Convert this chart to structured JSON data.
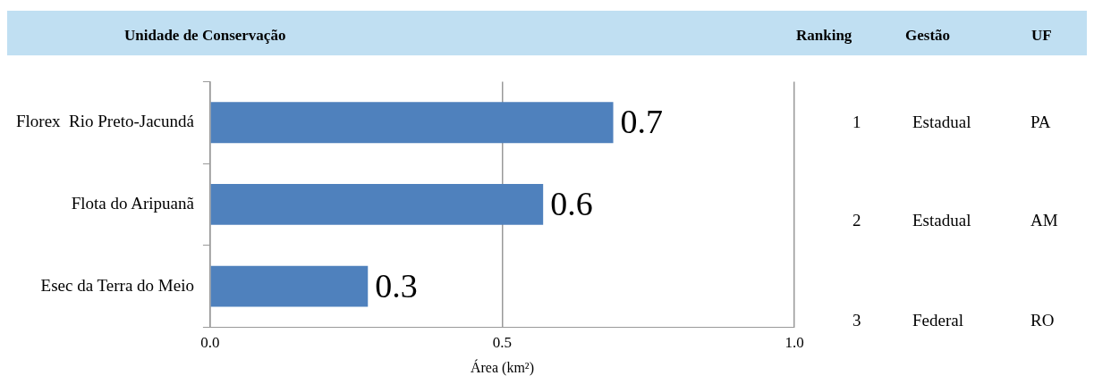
{
  "chart_data": {
    "type": "bar",
    "orientation": "horizontal",
    "ylabel": "Unidade de Conservação",
    "xlabel": "Área (km²)",
    "categories": [
      "Florex  Rio Preto-Jacundá",
      "Flota do Aripuanã",
      "Esec da Terra do Meio"
    ],
    "values": [
      0.69,
      0.57,
      0.27
    ],
    "color": "#4f81bd",
    "value_labels": [
      "0.7",
      "0.6",
      "0.3"
    ],
    "xlim": [
      0,
      1
    ],
    "xticks": [
      {
        "value": 0,
        "label": "0.0"
      },
      {
        "value": 0.5,
        "label": "0.5"
      },
      {
        "value": 1,
        "label": "1.0"
      }
    ],
    "grid": "x",
    "legend": false,
    "annotations": [
      "Ranking",
      "Gestão",
      "UF",
      "1",
      "Estadual",
      "PA",
      "2",
      "Estadual",
      "AM",
      "3",
      "Federal",
      "RO"
    ]
  }
}
